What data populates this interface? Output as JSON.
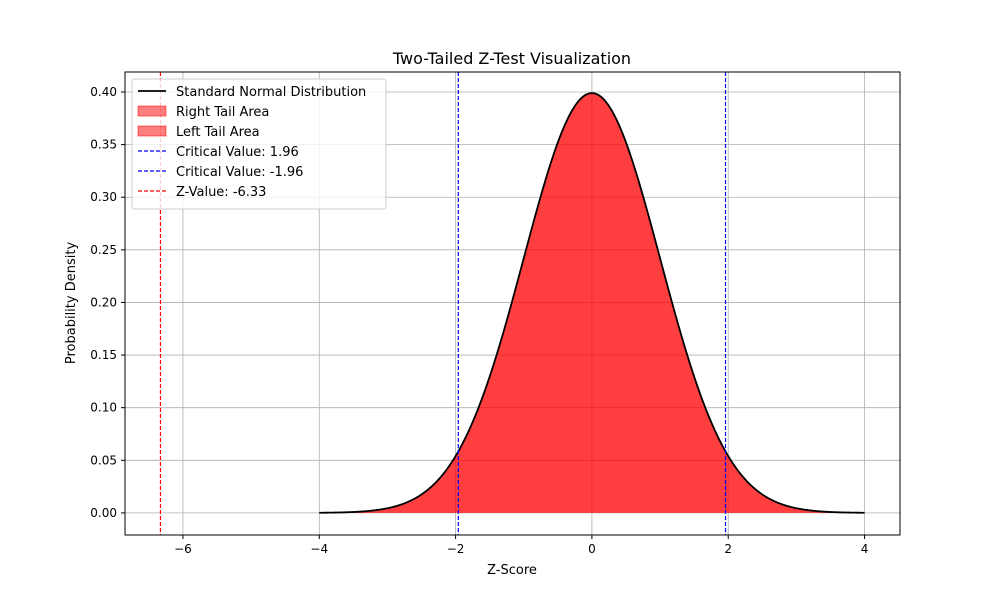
{
  "chart_data": {
    "type": "area",
    "title": "Two-Tailed Z-Test Visualization",
    "xlabel": "Z-Score",
    "ylabel": "Probability Density",
    "xlim": [
      -6.85,
      4.52
    ],
    "ylim": [
      -0.021,
      0.419
    ],
    "xticks": [
      -6,
      -4,
      -2,
      0,
      2,
      4
    ],
    "xtick_labels": [
      "−6",
      "−4",
      "−2",
      "0",
      "2",
      "4"
    ],
    "yticks": [
      0.0,
      0.05,
      0.1,
      0.15,
      0.2,
      0.25,
      0.3,
      0.35,
      0.4
    ],
    "ytick_labels": [
      "0.00",
      "0.05",
      "0.10",
      "0.15",
      "0.20",
      "0.25",
      "0.30",
      "0.35",
      "0.40"
    ],
    "grid": true,
    "legend_position": "top-left",
    "curve": {
      "name": "Standard Normal Distribution",
      "distribution": "normal",
      "mean": 0,
      "std": 1,
      "x_range": [
        -4,
        4
      ],
      "color": "#000000"
    },
    "fills": [
      {
        "name": "Right Tail Area",
        "x_range": [
          -4,
          4
        ],
        "color": "#ff0000",
        "alpha": 0.5
      },
      {
        "name": "Left Tail Area",
        "x_range": [
          -4,
          4
        ],
        "color": "#ff0000",
        "alpha": 0.5
      }
    ],
    "vlines": [
      {
        "name": "Critical Value: 1.96",
        "x": 1.96,
        "color": "#0000ff"
      },
      {
        "name": "Critical Value: -1.96",
        "x": -1.96,
        "color": "#0000ff"
      },
      {
        "name": "Z-Value: -6.33",
        "x": -6.33,
        "color": "#ff0000"
      }
    ]
  }
}
